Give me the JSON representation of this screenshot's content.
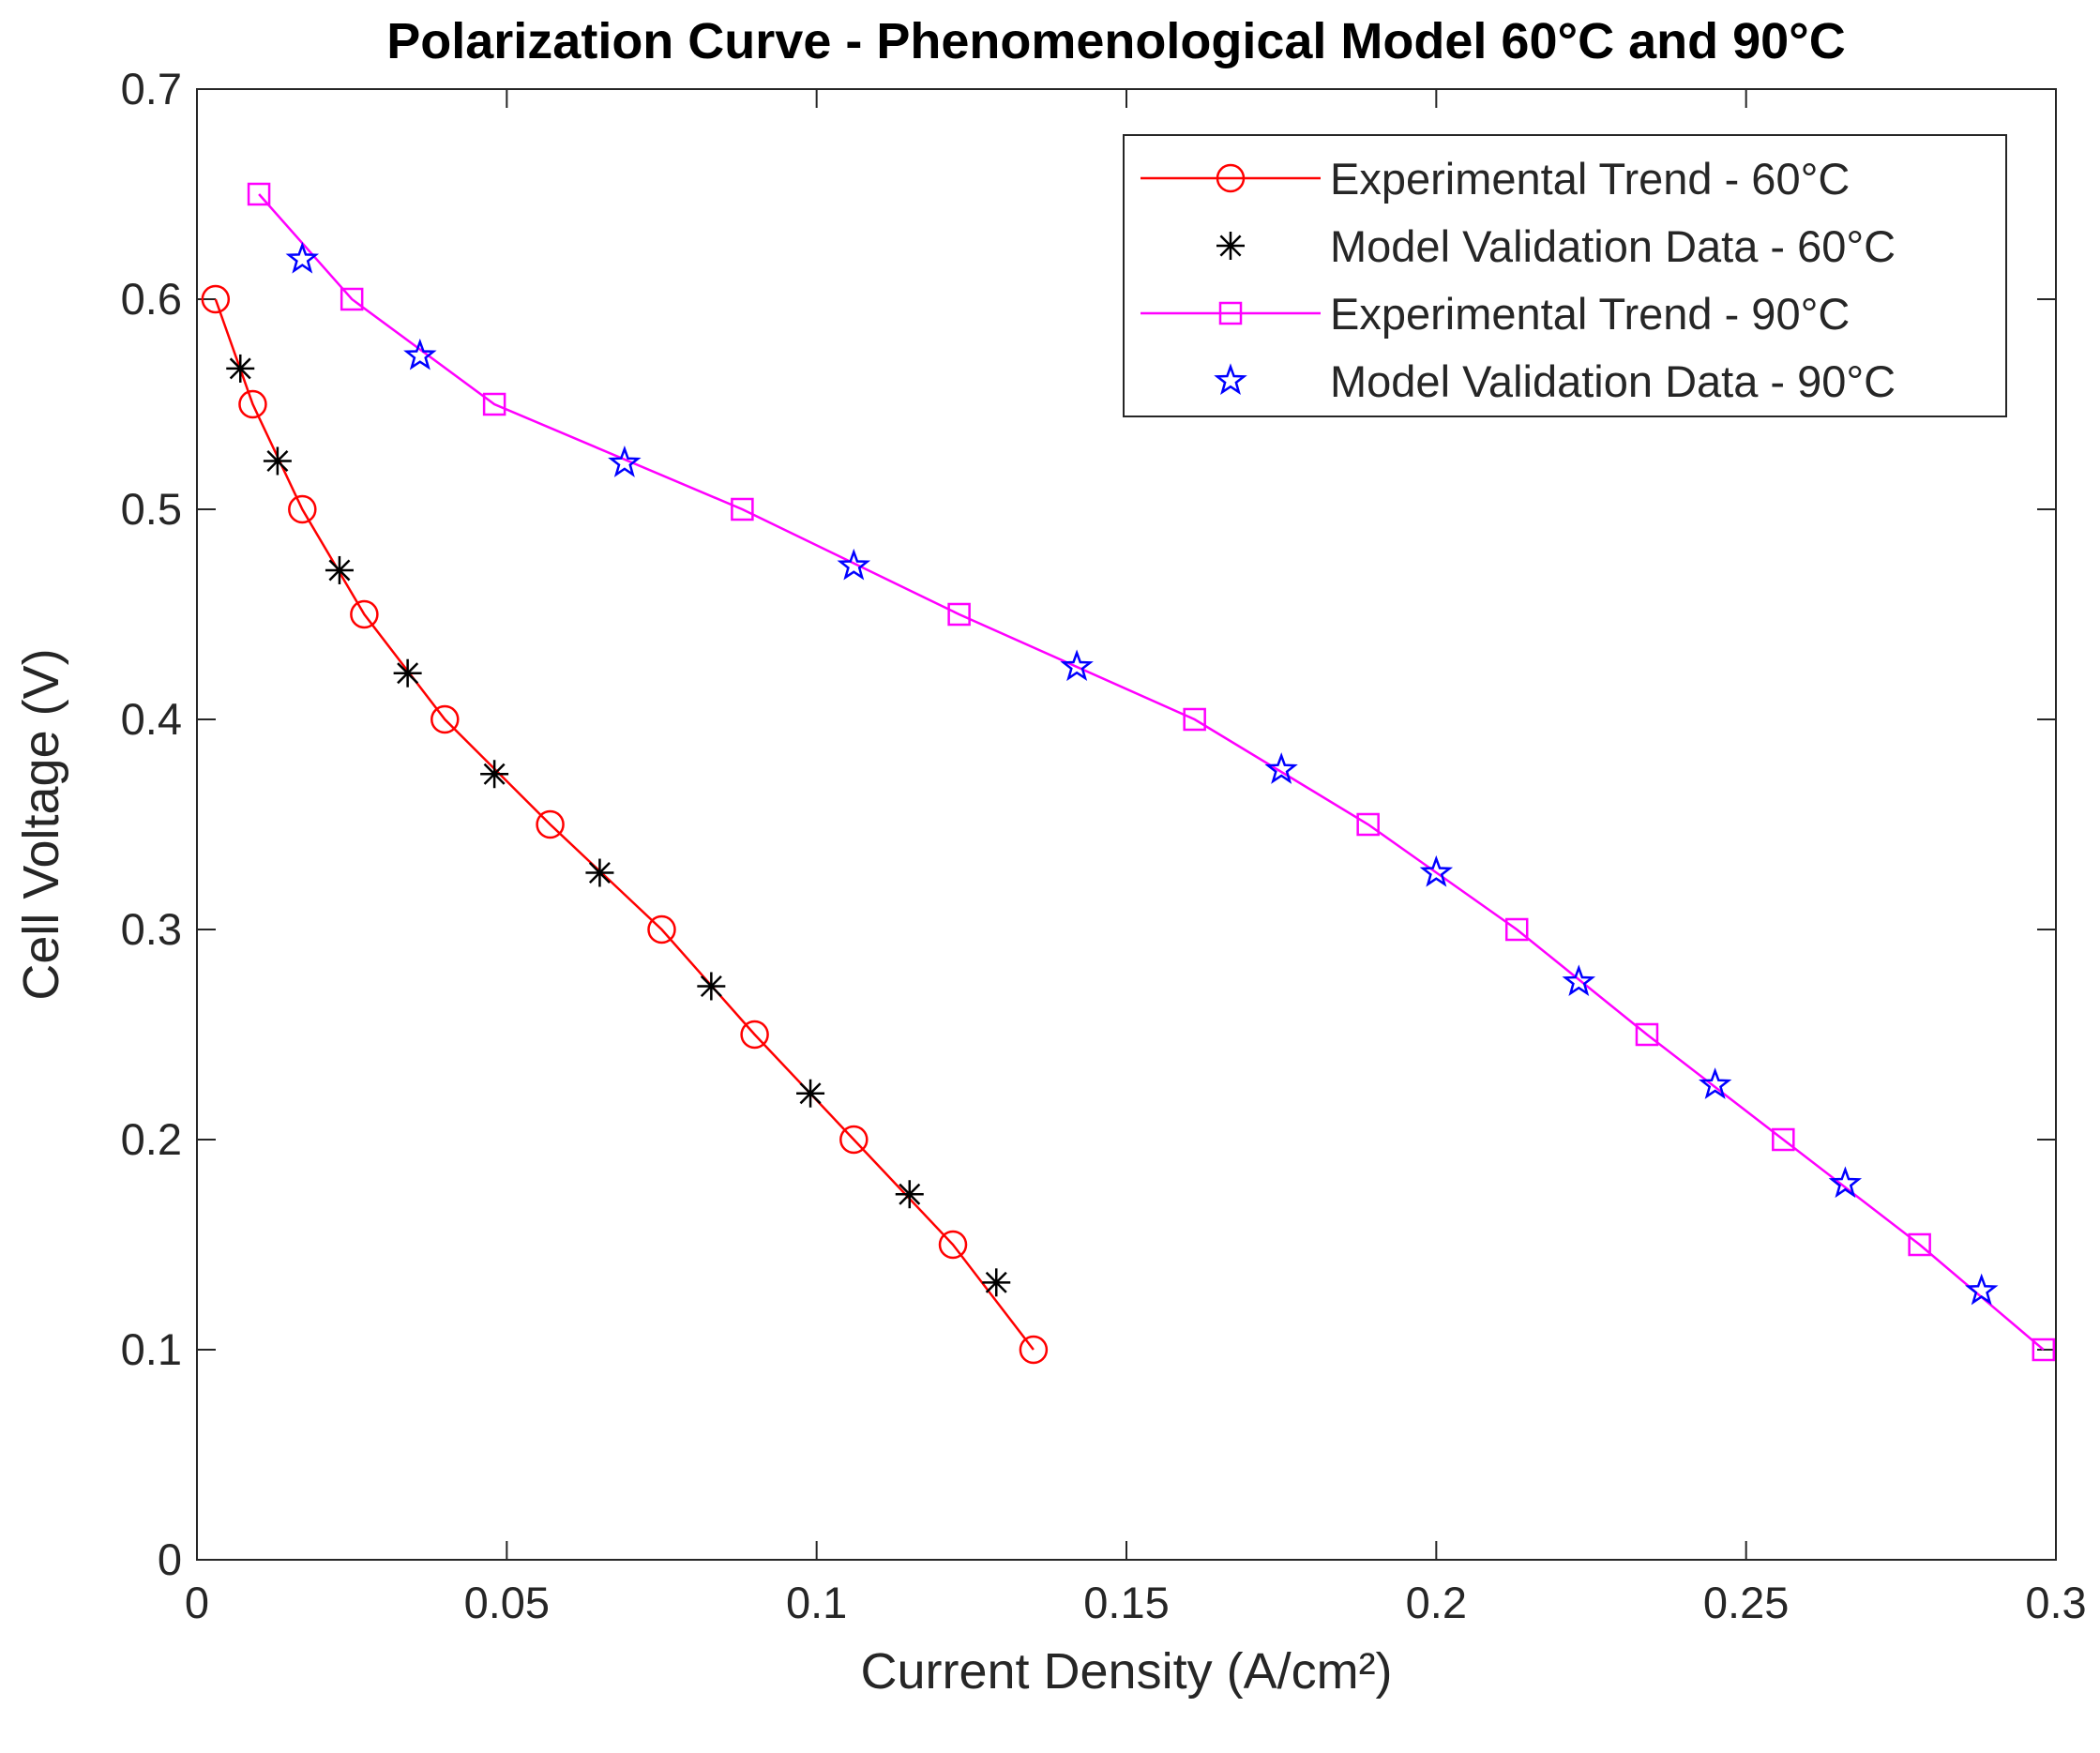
{
  "chart_data": {
    "type": "line",
    "title": "Polarization Curve - Phenomenological Model 60°C and 90°C",
    "xlabel": "Current Density (A/cm²)",
    "ylabel": "Cell Voltage (V)",
    "xlim": [
      0,
      0.3
    ],
    "ylim": [
      0,
      0.7
    ],
    "xticks": [
      0,
      0.05,
      0.1,
      0.15,
      0.2,
      0.25,
      0.3
    ],
    "xtick_labels": [
      "0",
      "0.05",
      "0.1",
      "0.15",
      "0.2",
      "0.25",
      "0.3"
    ],
    "yticks": [
      0,
      0.1,
      0.2,
      0.3,
      0.4,
      0.5,
      0.6,
      0.7
    ],
    "ytick_labels": [
      "0",
      "0.1",
      "0.2",
      "0.3",
      "0.4",
      "0.5",
      "0.6",
      "0.7"
    ],
    "grid": false,
    "legend_position": "top-right",
    "series": [
      {
        "name": "Experimental Trend - 60°C",
        "style": "line-marker",
        "marker": "circle",
        "color": "#ff0000",
        "x": [
          0.003,
          0.009,
          0.017,
          0.027,
          0.04,
          0.057,
          0.075,
          0.09,
          0.106,
          0.122,
          0.135
        ],
        "y": [
          0.6,
          0.55,
          0.5,
          0.45,
          0.4,
          0.35,
          0.3,
          0.25,
          0.2,
          0.15,
          0.1
        ]
      },
      {
        "name": "Model Validation Data - 60°C",
        "style": "marker",
        "marker": "asterisk",
        "color": "#000000",
        "x": [
          0.007,
          0.013,
          0.023,
          0.034,
          0.048,
          0.065,
          0.083,
          0.099,
          0.115,
          0.129
        ],
        "y": [
          0.567,
          0.523,
          0.471,
          0.422,
          0.374,
          0.327,
          0.273,
          0.222,
          0.174,
          0.132
        ]
      },
      {
        "name": "Experimental Trend - 90°C",
        "style": "line-marker",
        "marker": "square",
        "color": "#ff00ff",
        "x": [
          0.01,
          0.025,
          0.048,
          0.088,
          0.123,
          0.161,
          0.189,
          0.213,
          0.234,
          0.256,
          0.278,
          0.298
        ],
        "y": [
          0.65,
          0.6,
          0.55,
          0.5,
          0.45,
          0.4,
          0.35,
          0.3,
          0.25,
          0.2,
          0.15,
          0.1
        ]
      },
      {
        "name": "Model Validation Data - 90°C",
        "style": "marker",
        "marker": "star",
        "color": "#0000ff",
        "x": [
          0.017,
          0.036,
          0.069,
          0.106,
          0.142,
          0.175,
          0.2,
          0.223,
          0.245,
          0.266,
          0.288
        ],
        "y": [
          0.619,
          0.573,
          0.522,
          0.473,
          0.425,
          0.376,
          0.327,
          0.275,
          0.226,
          0.179,
          0.128
        ]
      }
    ]
  }
}
